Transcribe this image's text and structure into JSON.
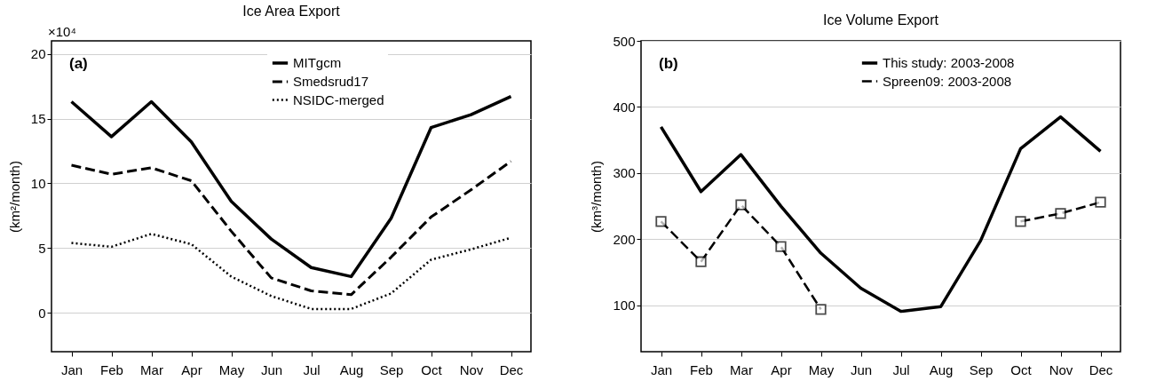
{
  "chart_data": [
    {
      "type": "line",
      "title": "Ice Area Export",
      "ylabel": "(km²/month)",
      "annotations": [
        "(a)",
        "×10⁴"
      ],
      "categories": [
        "Jan",
        "Feb",
        "Mar",
        "Apr",
        "May",
        "Jun",
        "Jul",
        "Aug",
        "Sep",
        "Oct",
        "Nov",
        "Dec"
      ],
      "series": [
        {
          "name": "MITgcm",
          "color": "#000000",
          "line_style": "solid",
          "values": [
            16.3,
            13.6,
            16.3,
            13.2,
            8.6,
            5.7,
            3.5,
            2.8,
            7.3,
            14.3,
            15.3,
            16.7
          ]
        },
        {
          "name": "Smedsrud17",
          "color": "#000000",
          "line_style": "dashed",
          "values": [
            11.4,
            10.7,
            11.2,
            10.2,
            6.3,
            2.7,
            1.7,
            1.4,
            4.3,
            7.4,
            9.5,
            11.7
          ]
        },
        {
          "name": "NSIDC-merged",
          "color": "#000000",
          "line_style": "dotted",
          "values": [
            5.4,
            5.1,
            6.1,
            5.3,
            2.8,
            1.3,
            0.3,
            0.3,
            1.5,
            4.1,
            4.9,
            5.8
          ]
        }
      ],
      "ylim": [
        -3,
        21
      ],
      "yticks": [
        0,
        5,
        10,
        15,
        20
      ],
      "grid": "y",
      "legend": "top right"
    },
    {
      "type": "line",
      "title": "Ice Volume Export",
      "ylabel": "(km³/month)",
      "annotations": [
        "(b)"
      ],
      "categories": [
        "Jan",
        "Feb",
        "Mar",
        "Apr",
        "May",
        "Jun",
        "Jul",
        "Aug",
        "Sep",
        "Oct",
        "Nov",
        "Dec"
      ],
      "series": [
        {
          "name": "This study: 2003-2008",
          "color": "#000000",
          "line_style": "solid",
          "values": [
            370,
            272,
            328,
            250,
            179,
            126,
            91,
            98,
            198,
            337,
            385,
            333
          ]
        },
        {
          "name": "Spreen09: 2003-2008",
          "color": "#000000",
          "line_style": "dashed",
          "marker": "square",
          "values": [
            227,
            166,
            252,
            189,
            94,
            null,
            null,
            null,
            null,
            227,
            239,
            256
          ]
        }
      ],
      "ylim": [
        30,
        500
      ],
      "yticks": [
        100,
        200,
        300,
        400,
        500
      ],
      "grid": "y",
      "legend": "top right"
    }
  ]
}
